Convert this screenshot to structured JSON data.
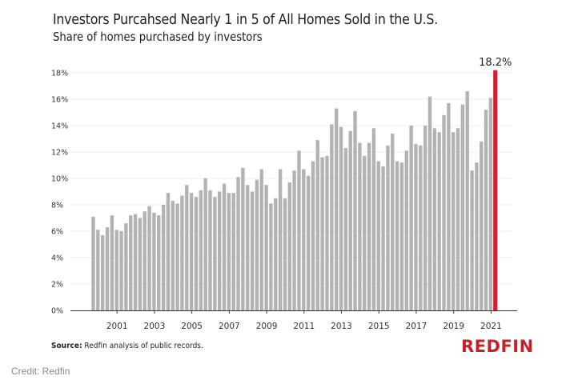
{
  "header": {
    "title": "Investors Purcahsed Nearly 1 in 5 of All Homes Sold in the U.S.",
    "subtitle": "Share of homes purchased by investors"
  },
  "footer": {
    "source_label": "Source:",
    "source_text": " Redfin analysis of public records.",
    "brand": "REDFIN",
    "credit": "Credit: Redfin"
  },
  "colors": {
    "bar": "#b3b3b3",
    "highlight": "#d2202e",
    "gridline": "#eeeeee",
    "axis": "#333333"
  },
  "chart_data": {
    "type": "bar",
    "title": "Investors Purcahsed Nearly 1 in 5 of All Homes Sold in the U.S.",
    "subtitle": "Share of homes purchased by investors",
    "xlabel": "",
    "ylabel": "",
    "ylim": [
      0,
      18
    ],
    "yticks": [
      0,
      2,
      4,
      6,
      8,
      10,
      12,
      14,
      16,
      18
    ],
    "ytick_labels": [
      "0%",
      "2%",
      "4%",
      "6%",
      "8%",
      "10%",
      "12%",
      "14%",
      "16%",
      "18%"
    ],
    "xtick_labels": [
      "2001",
      "2003",
      "2005",
      "2007",
      "2009",
      "2011",
      "2013",
      "2015",
      "2017",
      "2019",
      "2021"
    ],
    "grid": true,
    "start_year": 2000,
    "periods_per_year": 4,
    "highlight_last": true,
    "annotation": "18.2%",
    "values": [
      7.1,
      6.1,
      5.7,
      6.3,
      7.2,
      6.1,
      6.0,
      6.6,
      7.2,
      7.3,
      7.0,
      7.5,
      7.9,
      7.4,
      7.2,
      8.0,
      8.9,
      8.3,
      8.1,
      8.7,
      9.5,
      8.9,
      8.6,
      9.1,
      10.0,
      9.1,
      8.6,
      9.0,
      9.6,
      8.9,
      8.9,
      10.1,
      10.8,
      9.5,
      9.0,
      9.9,
      10.7,
      9.5,
      8.1,
      8.5,
      10.7,
      8.5,
      9.7,
      10.6,
      12.1,
      10.7,
      10.2,
      11.3,
      12.9,
      11.6,
      11.7,
      14.1,
      15.3,
      13.9,
      12.3,
      13.6,
      15.1,
      12.7,
      11.7,
      12.7,
      13.8,
      11.3,
      10.9,
      12.5,
      13.4,
      11.3,
      11.2,
      12.1,
      14.0,
      12.6,
      12.5,
      14.0,
      16.2,
      13.8,
      13.5,
      14.8,
      15.7,
      13.5,
      13.8,
      15.6,
      16.6,
      10.6,
      11.2,
      12.8,
      15.2,
      16.1,
      18.2
    ]
  }
}
